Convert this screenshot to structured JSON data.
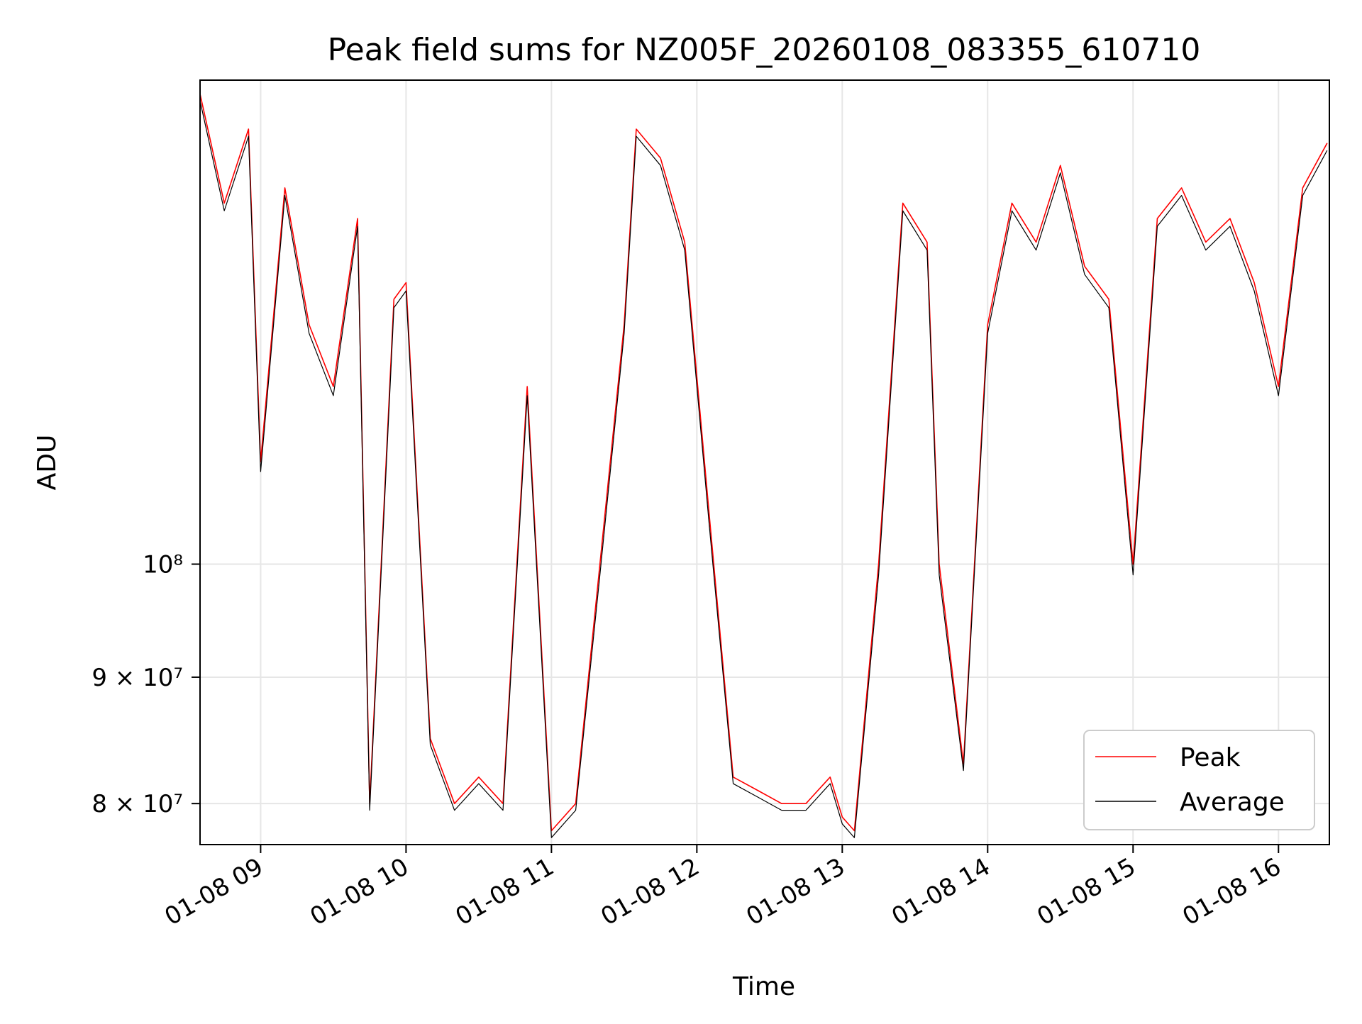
{
  "chart_data": {
    "type": "line",
    "title": "Peak field sums for NZ005F_20260108_083355_610710",
    "xlabel": "Time",
    "ylabel": "ADU",
    "yscale": "log",
    "xlim": [
      "2026-01-08T08:35",
      "2026-01-08T16:21"
    ],
    "ylim": [
      77000000,
      157000000
    ],
    "x_ticks": [
      {
        "value": "2026-01-08T09:00",
        "label": "01-08 09"
      },
      {
        "value": "2026-01-08T10:00",
        "label": "01-08 10"
      },
      {
        "value": "2026-01-08T11:00",
        "label": "01-08 11"
      },
      {
        "value": "2026-01-08T12:00",
        "label": "01-08 12"
      },
      {
        "value": "2026-01-08T13:00",
        "label": "01-08 13"
      },
      {
        "value": "2026-01-08T14:00",
        "label": "01-08 14"
      },
      {
        "value": "2026-01-08T15:00",
        "label": "01-08 15"
      },
      {
        "value": "2026-01-08T16:00",
        "label": "01-08 16"
      }
    ],
    "y_ticks": [
      {
        "value": 80000000,
        "label": "8 × 10⁷"
      },
      {
        "value": 90000000,
        "label": "9 × 10⁷"
      },
      {
        "value": 100000000,
        "label": "10⁸"
      }
    ],
    "grid": true,
    "legend_position": "lower-right",
    "x": [
      "2026-01-08T08:35",
      "2026-01-08T08:45",
      "2026-01-08T08:55",
      "2026-01-08T09:00",
      "2026-01-08T09:10",
      "2026-01-08T09:20",
      "2026-01-08T09:30",
      "2026-01-08T09:40",
      "2026-01-08T09:45",
      "2026-01-08T09:55",
      "2026-01-08T10:00",
      "2026-01-08T10:10",
      "2026-01-08T10:20",
      "2026-01-08T10:30",
      "2026-01-08T10:40",
      "2026-01-08T10:50",
      "2026-01-08T11:00",
      "2026-01-08T11:10",
      "2026-01-08T11:20",
      "2026-01-08T11:30",
      "2026-01-08T11:35",
      "2026-01-08T11:45",
      "2026-01-08T11:55",
      "2026-01-08T12:05",
      "2026-01-08T12:15",
      "2026-01-08T12:25",
      "2026-01-08T12:35",
      "2026-01-08T12:45",
      "2026-01-08T12:55",
      "2026-01-08T13:00",
      "2026-01-08T13:05",
      "2026-01-08T13:15",
      "2026-01-08T13:25",
      "2026-01-08T13:35",
      "2026-01-08T13:40",
      "2026-01-08T13:50",
      "2026-01-08T14:00",
      "2026-01-08T14:10",
      "2026-01-08T14:20",
      "2026-01-08T14:30",
      "2026-01-08T14:40",
      "2026-01-08T14:50",
      "2026-01-08T15:00",
      "2026-01-08T15:10",
      "2026-01-08T15:20",
      "2026-01-08T15:30",
      "2026-01-08T15:40",
      "2026-01-08T15:50",
      "2026-01-08T16:00",
      "2026-01-08T16:10",
      "2026-01-08T16:20"
    ],
    "series": [
      {
        "name": "Peak",
        "color": "#ff0000",
        "values": [
          155000000,
          140000000,
          150000000,
          110000000,
          142000000,
          125000000,
          118000000,
          138000000,
          80000000,
          128000000,
          130000000,
          85000000,
          80000000,
          82000000,
          80000000,
          118000000,
          78000000,
          80000000,
          100000000,
          125000000,
          150000000,
          146000000,
          135000000,
          105000000,
          82000000,
          81000000,
          80000000,
          80000000,
          82000000,
          79000000,
          78000000,
          100000000,
          140000000,
          135000000,
          100000000,
          83000000,
          125000000,
          140000000,
          135000000,
          145000000,
          132000000,
          128000000,
          100000000,
          138000000,
          142000000,
          135000000,
          138000000,
          130000000,
          118000000,
          142000000,
          148000000
        ]
      },
      {
        "name": "Average",
        "color": "#000000",
        "values": [
          154000000,
          139000000,
          149000000,
          109000000,
          141000000,
          124000000,
          117000000,
          137000000,
          79500000,
          127000000,
          129000000,
          84500000,
          79500000,
          81500000,
          79500000,
          117000000,
          77500000,
          79500000,
          99000000,
          124000000,
          149000000,
          145000000,
          134000000,
          104000000,
          81500000,
          80500000,
          79500000,
          79500000,
          81500000,
          78500000,
          77500000,
          99000000,
          139000000,
          134000000,
          99000000,
          82500000,
          124000000,
          139000000,
          134000000,
          144000000,
          131000000,
          127000000,
          99000000,
          137000000,
          141000000,
          134000000,
          137000000,
          129000000,
          117000000,
          141000000,
          147000000
        ]
      }
    ]
  }
}
